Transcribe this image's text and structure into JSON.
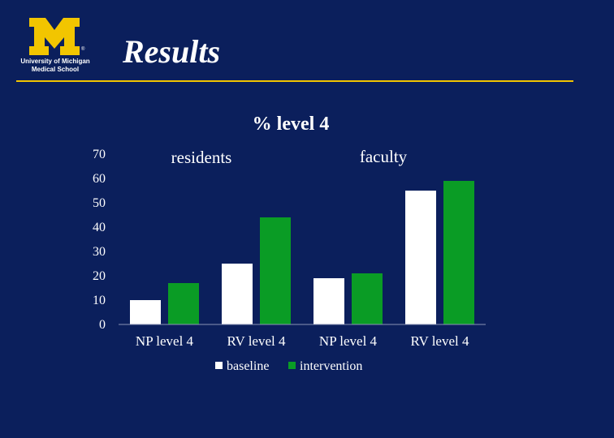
{
  "slide": {
    "title": "Results",
    "logo": {
      "mark": "M",
      "reg": "®",
      "line1": "University of Michigan",
      "line2": "Medical School"
    }
  },
  "colors": {
    "background": "#0b1f5c",
    "rule": "#f2c500",
    "logo_maize": "#f2c500",
    "baseline": "#ffffff",
    "intervention": "#0a9c25"
  },
  "chart_data": {
    "type": "bar",
    "title": "% level 4",
    "xlabel": "",
    "ylabel": "",
    "categories": [
      "NP level 4",
      "RV level 4",
      "NP level 4",
      "RV level 4"
    ],
    "series": [
      {
        "name": "baseline",
        "values": [
          10,
          25,
          19,
          55
        ]
      },
      {
        "name": "intervention",
        "values": [
          17,
          44,
          21,
          59
        ]
      }
    ],
    "ylim": [
      0,
      70
    ],
    "yticks": [
      0,
      10,
      20,
      30,
      40,
      50,
      60,
      70
    ],
    "annotations": [
      "residents",
      "faculty"
    ],
    "legend": "bottom",
    "grid": false
  }
}
